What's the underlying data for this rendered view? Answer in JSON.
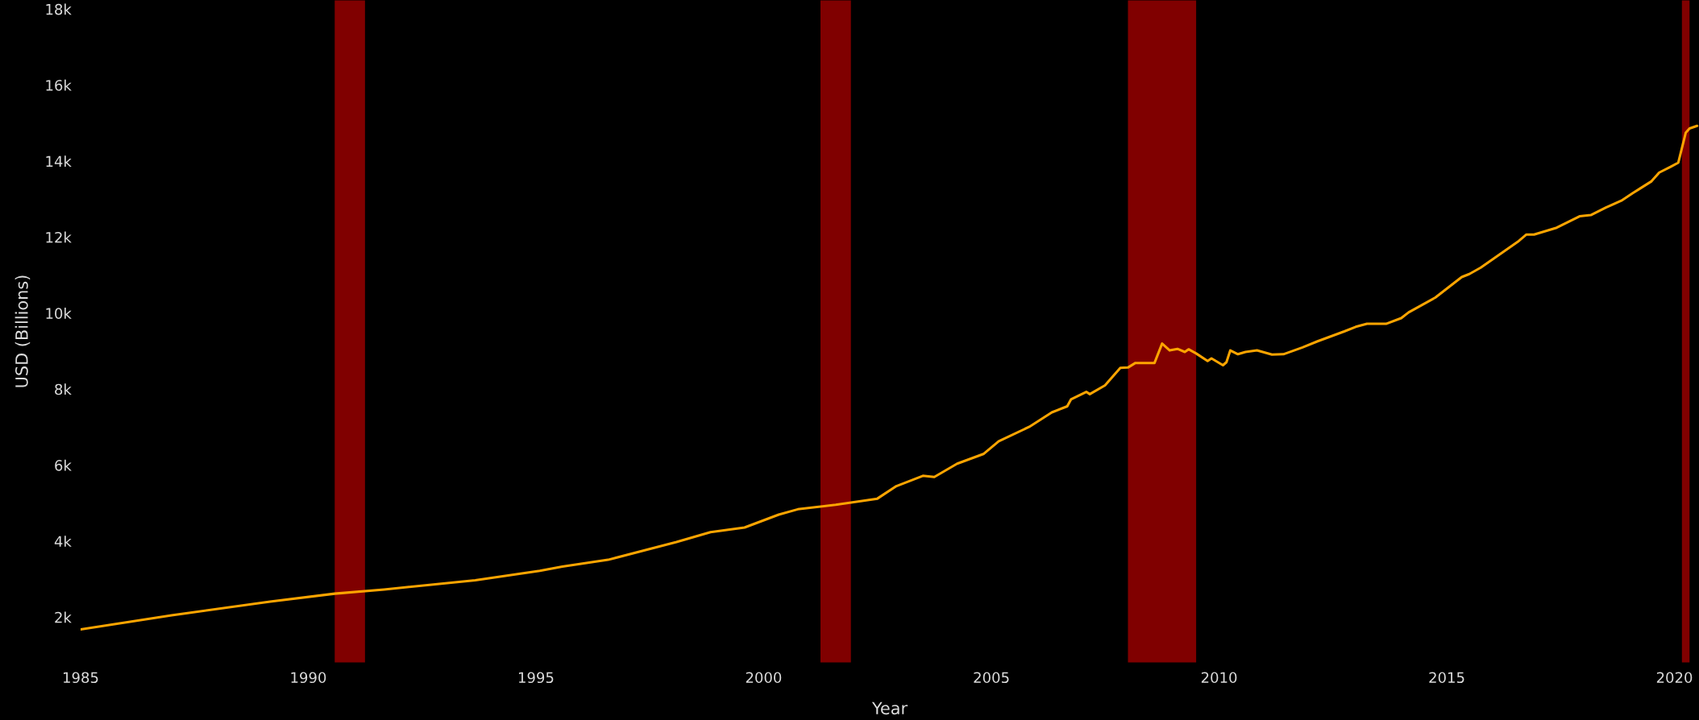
{
  "chart_data": {
    "type": "line",
    "xlabel": "Year",
    "ylabel": "USD (Billions)",
    "x": [
      "1985-01",
      "1987-01",
      "1989-03",
      "1990-08",
      "1991-09",
      "1993-09",
      "1995-02",
      "1995-08",
      "1996-08",
      "1998-02",
      "1998-11",
      "1999-08",
      "2000-05",
      "2000-10",
      "2001-08",
      "2002-07",
      "2002-12",
      "2003-07",
      "2003-10",
      "2004-04",
      "2004-11",
      "2005-03",
      "2005-11",
      "2006-05",
      "2006-09",
      "2006-10",
      "2007-02",
      "2007-03",
      "2007-07",
      "2007-11",
      "2008-01",
      "2008-03",
      "2008-08",
      "2008-10",
      "2008-12",
      "2009-02",
      "2009-04",
      "2009-05",
      "2009-07",
      "2009-10",
      "2009-11",
      "2010-02",
      "2010-03",
      "2010-04",
      "2010-06",
      "2010-08",
      "2010-11",
      "2011-03",
      "2011-06",
      "2011-11",
      "2012-03",
      "2012-10",
      "2013-01",
      "2013-04",
      "2013-09",
      "2014-01",
      "2014-03",
      "2014-10",
      "2015-05",
      "2015-07",
      "2015-10",
      "2016-08",
      "2016-10",
      "2016-12",
      "2017-06",
      "2017-12",
      "2018-03",
      "2018-07",
      "2018-11",
      "2019-02",
      "2019-07",
      "2019-09",
      "2019-12",
      "2020-02",
      "2020-04",
      "2020-05",
      "2020-07"
    ],
    "series": [
      {
        "color": "#ffa500",
        "values": [
          1680,
          2050,
          2410,
          2620,
          2730,
          2970,
          3220,
          3330,
          3510,
          3980,
          4240,
          4360,
          4700,
          4840,
          4960,
          5120,
          5450,
          5720,
          5690,
          6040,
          6300,
          6630,
          7010,
          7390,
          7550,
          7730,
          7930,
          7870,
          8100,
          8560,
          8570,
          8690,
          8690,
          9200,
          9020,
          9060,
          8980,
          9050,
          8940,
          8740,
          8810,
          8630,
          8710,
          9020,
          8920,
          8980,
          9020,
          8910,
          8920,
          9100,
          9260,
          9520,
          9640,
          9720,
          9720,
          9870,
          10020,
          10410,
          10950,
          11030,
          11200,
          11900,
          12070,
          12070,
          12250,
          12550,
          12580,
          12780,
          12960,
          13160,
          13470,
          13700,
          13850,
          13960,
          14750,
          14860,
          14930
        ]
      }
    ],
    "xlim": [
      "1985-01-01",
      "2020-07-16"
    ],
    "xticks": [
      {
        "value": "1985-01-01",
        "label": "1985"
      },
      {
        "value": "1990-01-01",
        "label": "1990"
      },
      {
        "value": "1995-01-01",
        "label": "1995"
      },
      {
        "value": "2000-01-01",
        "label": "2000"
      },
      {
        "value": "2005-01-01",
        "label": "2005"
      },
      {
        "value": "2010-01-01",
        "label": "2010"
      },
      {
        "value": "2015-01-01",
        "label": "2015"
      },
      {
        "value": "2020-01-01",
        "label": "2020"
      }
    ],
    "ylim": [
      800,
      18240
    ],
    "yticks": [
      {
        "value": 2000,
        "label": "2k"
      },
      {
        "value": 4000,
        "label": "4k"
      },
      {
        "value": 6000,
        "label": "6k"
      },
      {
        "value": 8000,
        "label": "8k"
      },
      {
        "value": 10000,
        "label": "10k"
      },
      {
        "value": 12000,
        "label": "12k"
      },
      {
        "value": 14000,
        "label": "14k"
      },
      {
        "value": 16000,
        "label": "16k"
      },
      {
        "value": 18000,
        "label": "18k"
      }
    ],
    "bands": [
      {
        "axis": "x",
        "from": "1990-08",
        "to": "1991-04",
        "color": "#800000"
      },
      {
        "axis": "x",
        "from": "2001-04",
        "to": "2001-12",
        "color": "#800000"
      },
      {
        "axis": "x",
        "from": "2008-01",
        "to": "2009-07",
        "color": "#800000"
      },
      {
        "axis": "x",
        "from": "2020-03",
        "to": "2020-05",
        "color": "#800000"
      }
    ],
    "grid": false,
    "legend": false,
    "line_style": "solid",
    "marker": "none"
  }
}
